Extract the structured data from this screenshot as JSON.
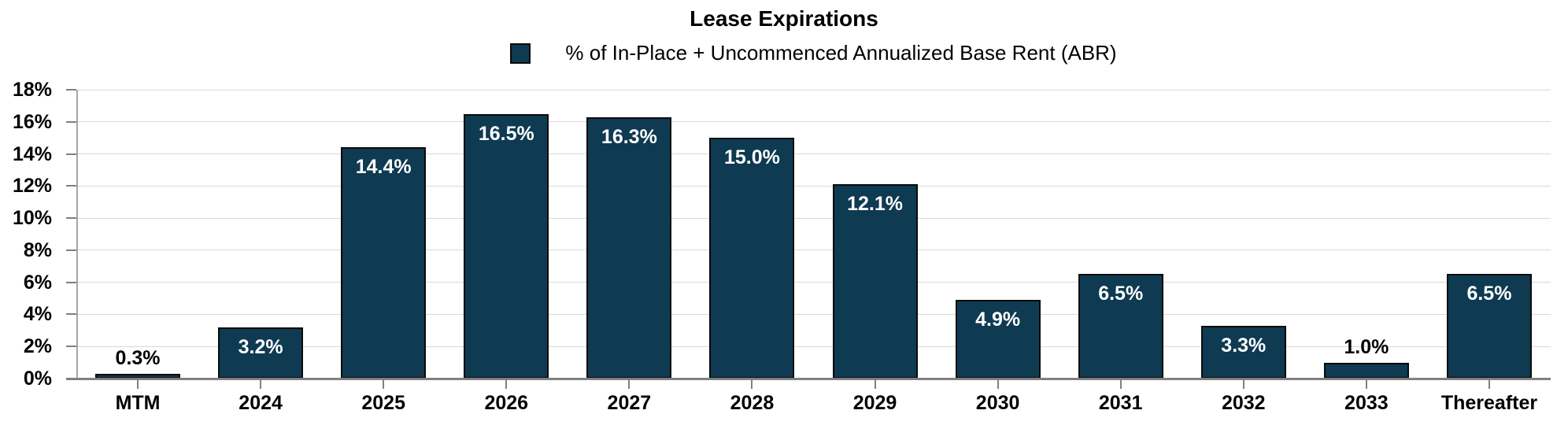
{
  "chart_data": {
    "type": "bar",
    "title": "Lease Expirations",
    "legend": "% of In-Place + Uncommenced Annualized Base Rent (ABR)",
    "categories": [
      "MTM",
      "2024",
      "2025",
      "2026",
      "2027",
      "2028",
      "2029",
      "2030",
      "2031",
      "2032",
      "2033",
      "Thereafter"
    ],
    "values": [
      0.3,
      3.2,
      14.4,
      16.5,
      16.3,
      15.0,
      12.1,
      4.9,
      6.5,
      3.3,
      1.0,
      6.5
    ],
    "value_labels": [
      "0.3%",
      "3.2%",
      "14.4%",
      "16.5%",
      "16.3%",
      "15.0%",
      "12.1%",
      "4.9%",
      "6.5%",
      "3.3%",
      "1.0%",
      "6.5%"
    ],
    "y_ticks": [
      {
        "label": "18%",
        "value": 18
      },
      {
        "label": "16%",
        "value": 16
      },
      {
        "label": "14%",
        "value": 14
      },
      {
        "label": "12%",
        "value": 12
      },
      {
        "label": "10%",
        "value": 10
      },
      {
        "label": "8%",
        "value": 8
      },
      {
        "label": "6%",
        "value": 6
      },
      {
        "label": "4%",
        "value": 4
      },
      {
        "label": "2%",
        "value": 2
      },
      {
        "label": "0%",
        "value": 0
      }
    ],
    "ylim": [
      0,
      18
    ],
    "xlabel": "",
    "ylabel": "",
    "grid": "horizontal",
    "legend_position": "top-center",
    "inside_label_threshold": 2,
    "colors": {
      "bar_fill": "#0E3A52",
      "bar_border": "#0B0B0B",
      "grid": "#D9D9D9",
      "axis": "#808080",
      "y_axis_line": "#A6A6A6",
      "label_inside": "#FFFFFF",
      "label_outside": "#000000",
      "text": "#000000"
    }
  }
}
